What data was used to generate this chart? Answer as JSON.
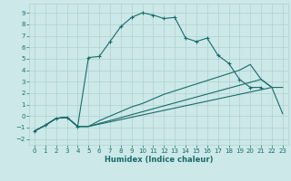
{
  "xlabel": "Humidex (Indice chaleur)",
  "xlim": [
    -0.5,
    23.5
  ],
  "ylim": [
    -2.5,
    9.8
  ],
  "xticks": [
    0,
    1,
    2,
    3,
    4,
    5,
    6,
    7,
    8,
    9,
    10,
    11,
    12,
    13,
    14,
    15,
    16,
    17,
    18,
    19,
    20,
    21,
    22,
    23
  ],
  "yticks": [
    -2,
    -1,
    0,
    1,
    2,
    3,
    4,
    5,
    6,
    7,
    8,
    9
  ],
  "bg_color": "#cce8e8",
  "grid_color": "#b0d0d0",
  "line_color": "#1a6b6b",
  "line1_x": [
    0,
    1,
    2,
    3,
    4,
    5,
    6,
    7,
    8,
    9,
    10,
    11,
    12,
    13,
    14,
    15,
    16,
    17,
    18,
    19,
    20,
    21
  ],
  "line1_y": [
    -1.3,
    -0.8,
    -0.2,
    -0.1,
    -0.9,
    5.1,
    5.2,
    6.5,
    7.8,
    8.6,
    9.0,
    8.8,
    8.5,
    8.6,
    6.8,
    6.5,
    6.8,
    5.3,
    4.6,
    3.2,
    2.5,
    2.5
  ],
  "line2_x": [
    0,
    1,
    2,
    3,
    4,
    5,
    21,
    22,
    23
  ],
  "line2_y": [
    -1.3,
    -0.8,
    -0.2,
    -0.1,
    -0.9,
    -0.9,
    3.2,
    2.5,
    2.5
  ],
  "line3_x": [
    0,
    1,
    2,
    3,
    4,
    5,
    6,
    7,
    8,
    9,
    10,
    11,
    12,
    13,
    14,
    15,
    16,
    17,
    18,
    19,
    20,
    21,
    22
  ],
  "line3_y": [
    -1.3,
    -0.8,
    -0.2,
    -0.1,
    -0.9,
    -0.9,
    -0.4,
    0.0,
    0.4,
    0.8,
    1.1,
    1.5,
    1.9,
    2.2,
    2.5,
    2.8,
    3.1,
    3.4,
    3.7,
    4.0,
    4.5,
    3.2,
    2.5
  ],
  "line4_x": [
    0,
    1,
    2,
    3,
    4,
    5,
    6,
    7,
    8,
    9,
    10,
    11,
    12,
    13,
    14,
    15,
    16,
    17,
    18,
    19,
    20,
    21,
    22,
    23
  ],
  "line4_y": [
    -1.3,
    -0.8,
    -0.2,
    -0.1,
    -0.9,
    -0.9,
    -0.7,
    -0.5,
    -0.3,
    -0.1,
    0.1,
    0.3,
    0.5,
    0.7,
    0.9,
    1.1,
    1.3,
    1.5,
    1.7,
    1.9,
    2.1,
    2.3,
    2.5,
    0.2
  ]
}
